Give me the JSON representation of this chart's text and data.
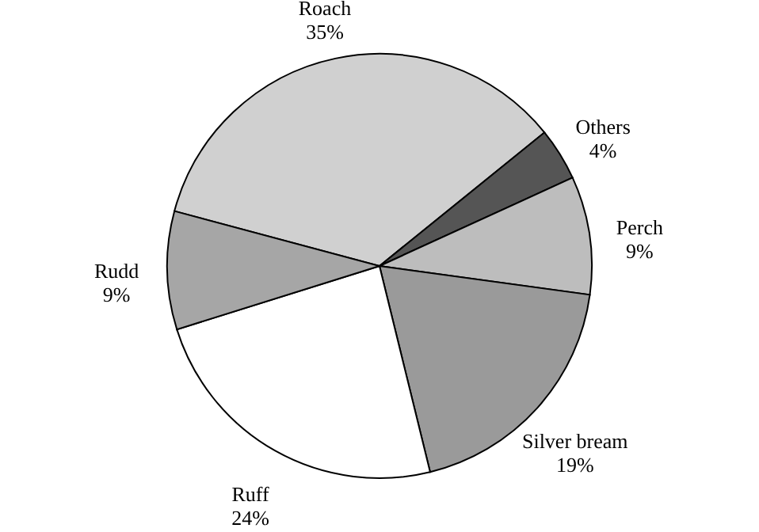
{
  "chart_data": {
    "type": "pie",
    "categories": [
      "Roach",
      "Others",
      "Perch",
      "Silver bream",
      "Ruff",
      "Rudd"
    ],
    "values": [
      35,
      4,
      9,
      19,
      24,
      9
    ],
    "value_labels": [
      "35%",
      "4%",
      "9%",
      "19%",
      "24%",
      "9%"
    ],
    "colors": [
      "#d0d0d0",
      "#555555",
      "#bdbdbd",
      "#9a9a9a",
      "#ffffff",
      "#a6a6a6"
    ]
  }
}
